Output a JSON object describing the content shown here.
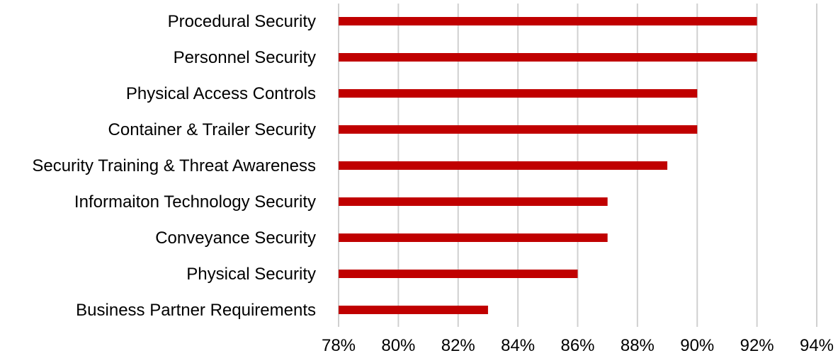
{
  "chart_data": {
    "type": "bar",
    "orientation": "horizontal",
    "categories": [
      "Procedural Security",
      "Personnel Security",
      "Physical Access Controls",
      "Container & Trailer Security",
      "Security Training & Threat Awareness",
      "Informaiton Technology Security",
      "Conveyance Security",
      "Physical Security",
      "Business Partner Requirements"
    ],
    "values": [
      92,
      92,
      90,
      90,
      89,
      87,
      87,
      86,
      83
    ],
    "xlim": [
      78,
      94
    ],
    "x_ticks": [
      78,
      80,
      82,
      84,
      86,
      88,
      90,
      92,
      94
    ],
    "x_tick_labels": [
      "78%",
      "80%",
      "82%",
      "84%",
      "86%",
      "88%",
      "90%",
      "92%",
      "94%"
    ],
    "title": "",
    "xlabel": "",
    "ylabel": "",
    "grid": "vertical",
    "legend": "none",
    "bar_color": "#c00000"
  }
}
